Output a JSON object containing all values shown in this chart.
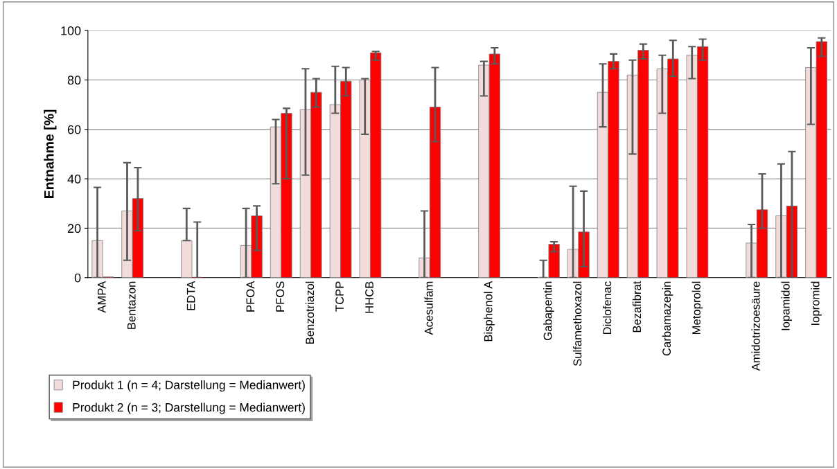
{
  "chart_data": {
    "type": "bar",
    "ylabel": "Entnahme [%]",
    "categories": [
      "AMPA",
      "Bentazon",
      null,
      "EDTA",
      null,
      "PFOA",
      "PFOS",
      "Benzotriazol",
      "TCPP",
      "HHCB",
      null,
      "Acesulfam",
      null,
      "Bisphenol A",
      null,
      "Gabapentin",
      "Sulfamethoxazol",
      "Diclofenac",
      "Bezafibrat",
      "Carbamazepin",
      "Metoprolol",
      null,
      "Amidotrizoesäure",
      "Iopamidol",
      "Iopromid"
    ],
    "series": [
      {
        "name": "Produkt 1 (n = 4; Darstellung = Medianwert)",
        "color": "#f2dcdb",
        "values": [
          15,
          27,
          null,
          15,
          null,
          13,
          61,
          68,
          70,
          80,
          null,
          8,
          null,
          86,
          null,
          0,
          11.5,
          75,
          82,
          84.5,
          90,
          null,
          14,
          25,
          85
        ],
        "errors": [
          [
            0,
            36.5
          ],
          [
            7,
            46.5
          ],
          null,
          [
            15,
            28
          ],
          null,
          [
            0,
            28
          ],
          [
            38,
            64
          ],
          [
            41.5,
            84.5
          ],
          [
            66.5,
            85.5
          ],
          [
            58,
            80.5
          ],
          null,
          [
            0,
            27
          ],
          null,
          [
            73.5,
            87.5
          ],
          null,
          [
            0,
            7
          ],
          [
            0,
            37
          ],
          [
            61,
            86.5
          ],
          [
            50,
            88
          ],
          [
            66.5,
            90
          ],
          [
            80.5,
            93.5
          ],
          null,
          [
            0,
            21.5
          ],
          [
            0,
            46
          ],
          [
            62,
            93
          ]
        ]
      },
      {
        "name": "Produkt 2 (n = 3; Darstellung = Medianwert)",
        "color": "#ff0000",
        "values": [
          0.3,
          32,
          null,
          0,
          null,
          25,
          66.5,
          75,
          79.5,
          91,
          null,
          69,
          null,
          90.5,
          null,
          13.5,
          18.5,
          87.5,
          92,
          88.5,
          93.5,
          null,
          27.5,
          29,
          95.5
        ],
        "errors": [
          null,
          [
            19,
            44.5
          ],
          null,
          [
            0,
            22.5
          ],
          null,
          [
            11,
            29
          ],
          [
            40,
            68.5
          ],
          [
            69,
            80.5
          ],
          [
            73.5,
            85
          ],
          [
            88,
            91.5
          ],
          null,
          [
            55,
            85
          ],
          null,
          [
            86.5,
            93
          ],
          null,
          [
            10.5,
            14.5
          ],
          [
            4.5,
            35
          ],
          [
            84.5,
            90.5
          ],
          [
            88.5,
            94.5
          ],
          [
            81.5,
            96
          ],
          [
            88,
            96.5
          ],
          null,
          [
            20,
            42
          ],
          [
            0,
            51
          ],
          [
            89.5,
            97
          ]
        ]
      }
    ],
    "ylim": [
      0,
      100
    ],
    "yticks": [
      0,
      20,
      40,
      60,
      80,
      100
    ],
    "grid": "y",
    "legend": "bottom left"
  }
}
